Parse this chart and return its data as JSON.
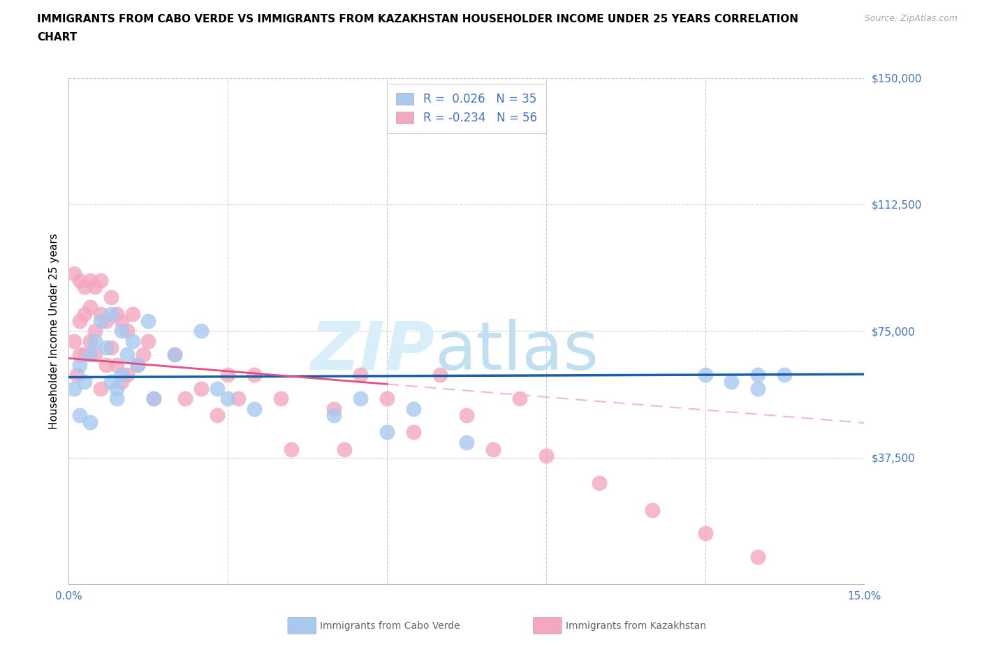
{
  "title_line1": "IMMIGRANTS FROM CABO VERDE VS IMMIGRANTS FROM KAZAKHSTAN HOUSEHOLDER INCOME UNDER 25 YEARS CORRELATION",
  "title_line2": "CHART",
  "source": "Source: ZipAtlas.com",
  "ylabel": "Householder Income Under 25 years",
  "xlabel_cabo": "Immigrants from Cabo Verde",
  "xlabel_kaz": "Immigrants from Kazakhstan",
  "xlim": [
    0.0,
    0.15
  ],
  "ylim": [
    0,
    150000
  ],
  "cabo_color": "#A8C8F0",
  "kaz_color": "#F4A8C0",
  "cabo_line_color": "#1A5FA8",
  "kaz_line_solid_color": "#E05080",
  "kaz_line_dash_color": "#F0B8C8",
  "legend_text_color": "#4472C4",
  "R_cabo": "0.026",
  "N_cabo": "35",
  "R_kaz": "-0.234",
  "N_kaz": "56",
  "cabo_x": [
    0.001,
    0.002,
    0.002,
    0.003,
    0.004,
    0.004,
    0.005,
    0.006,
    0.007,
    0.008,
    0.008,
    0.009,
    0.009,
    0.01,
    0.01,
    0.011,
    0.012,
    0.013,
    0.015,
    0.016,
    0.02,
    0.025,
    0.028,
    0.03,
    0.035,
    0.05,
    0.055,
    0.06,
    0.065,
    0.075,
    0.12,
    0.125,
    0.13,
    0.13,
    0.135
  ],
  "cabo_y": [
    58000,
    65000,
    50000,
    60000,
    68000,
    48000,
    72000,
    78000,
    70000,
    80000,
    60000,
    58000,
    55000,
    62000,
    75000,
    68000,
    72000,
    65000,
    78000,
    55000,
    68000,
    75000,
    58000,
    55000,
    52000,
    50000,
    55000,
    45000,
    52000,
    42000,
    62000,
    60000,
    62000,
    58000,
    62000
  ],
  "kaz_x": [
    0.001,
    0.001,
    0.0015,
    0.002,
    0.002,
    0.002,
    0.003,
    0.003,
    0.003,
    0.004,
    0.004,
    0.004,
    0.005,
    0.005,
    0.005,
    0.006,
    0.006,
    0.006,
    0.007,
    0.007,
    0.008,
    0.008,
    0.009,
    0.009,
    0.01,
    0.01,
    0.011,
    0.011,
    0.012,
    0.013,
    0.014,
    0.015,
    0.016,
    0.02,
    0.022,
    0.025,
    0.028,
    0.03,
    0.032,
    0.035,
    0.04,
    0.042,
    0.05,
    0.052,
    0.055,
    0.06,
    0.065,
    0.07,
    0.075,
    0.08,
    0.085,
    0.09,
    0.1,
    0.11,
    0.12,
    0.13
  ],
  "kaz_y": [
    92000,
    72000,
    62000,
    90000,
    78000,
    68000,
    88000,
    80000,
    68000,
    90000,
    82000,
    72000,
    88000,
    75000,
    68000,
    90000,
    80000,
    58000,
    78000,
    65000,
    85000,
    70000,
    80000,
    65000,
    78000,
    60000,
    75000,
    62000,
    80000,
    65000,
    68000,
    72000,
    55000,
    68000,
    55000,
    58000,
    50000,
    62000,
    55000,
    62000,
    55000,
    40000,
    52000,
    40000,
    62000,
    55000,
    45000,
    62000,
    50000,
    40000,
    55000,
    38000,
    30000,
    22000,
    15000,
    8000
  ]
}
